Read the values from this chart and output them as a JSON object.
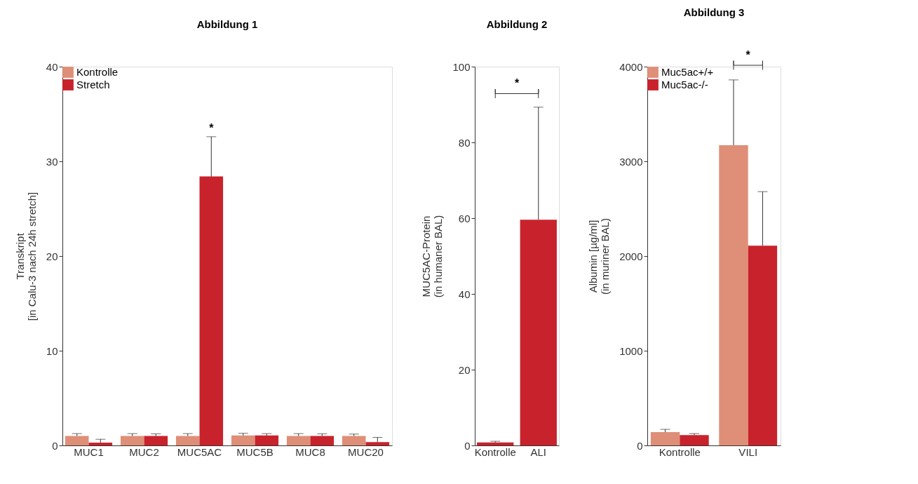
{
  "chart_data": [
    {
      "type": "bar",
      "title": "Abbildung 1",
      "ylabel": "Transkript\n[in Calu-3 nach 24h stretch]",
      "categories": [
        "MUC1",
        "MUC2",
        "MUC5AC",
        "MUC5B",
        "MUC8",
        "MUC20"
      ],
      "ylim": [
        0,
        40
      ],
      "yticks": [
        0,
        10,
        20,
        30,
        40
      ],
      "legend": "top left",
      "grid": false,
      "series": [
        {
          "name": "Kontrolle",
          "color": "#df8f78",
          "values": [
            1.0,
            1.0,
            1.0,
            1.05,
            1.0,
            1.0
          ],
          "errors": [
            [
              1.0,
              1.25
            ],
            [
              1.0,
              1.25
            ],
            [
              1.0,
              1.25
            ],
            [
              1.05,
              1.28
            ],
            [
              1.0,
              1.25
            ],
            [
              1.0,
              1.2
            ]
          ]
        },
        {
          "name": "Stretch",
          "color": "#c8232c",
          "values": [
            0.3,
            1.0,
            28.4,
            1.05,
            1.0,
            0.35
          ],
          "errors": [
            [
              0.3,
              0.65
            ],
            [
              1.0,
              1.22
            ],
            [
              28.4,
              32.6
            ],
            [
              1.05,
              1.25
            ],
            [
              1.0,
              1.22
            ],
            [
              0.35,
              0.85
            ]
          ]
        }
      ],
      "annotations": [
        "*"
      ]
    },
    {
      "type": "bar",
      "title": "Abbildung 2",
      "ylabel": "MUC5AC-Protein\n(in humaner BAL)",
      "categories": [
        "Kontrolle",
        "ALI"
      ],
      "ylim": [
        0,
        100
      ],
      "yticks": [
        0,
        20,
        40,
        60,
        80,
        100
      ],
      "grid": false,
      "series": [
        {
          "color": "#c8232c",
          "values": [
            0.8,
            59.6
          ],
          "errors": [
            [
              0.8,
              1.1
            ],
            [
              59.6,
              89.3
            ]
          ]
        }
      ],
      "annotations": [
        "*"
      ]
    },
    {
      "type": "bar",
      "title": "Abbildung 3",
      "ylabel": "Albumin [µg/ml]\n(in muriner BAL)",
      "categories": [
        "Kontrolle",
        "VILI"
      ],
      "ylim": [
        0,
        4000
      ],
      "yticks": [
        0,
        {
          "value": 1000,
          "label": "1000"
        },
        {
          "value": 2000,
          "label": "2000"
        },
        {
          "value": 3000,
          "label": "3000"
        },
        {
          "value": 4000,
          "label": "4000"
        }
      ],
      "legend": "top left",
      "grid": false,
      "series": [
        {
          "name": "Muc5ac+/+",
          "color": "#df8f78",
          "values": [
            140,
            3170
          ],
          "errors": [
            [
              140,
              170
            ],
            [
              3170,
              3860
            ]
          ]
        },
        {
          "name": "Muc5ac-/-",
          "color": "#c8232c",
          "values": [
            110,
            2110
          ],
          "errors": [
            [
              110,
              125
            ],
            [
              2110,
              2680
            ]
          ]
        }
      ],
      "annotations": [
        "*"
      ]
    }
  ]
}
